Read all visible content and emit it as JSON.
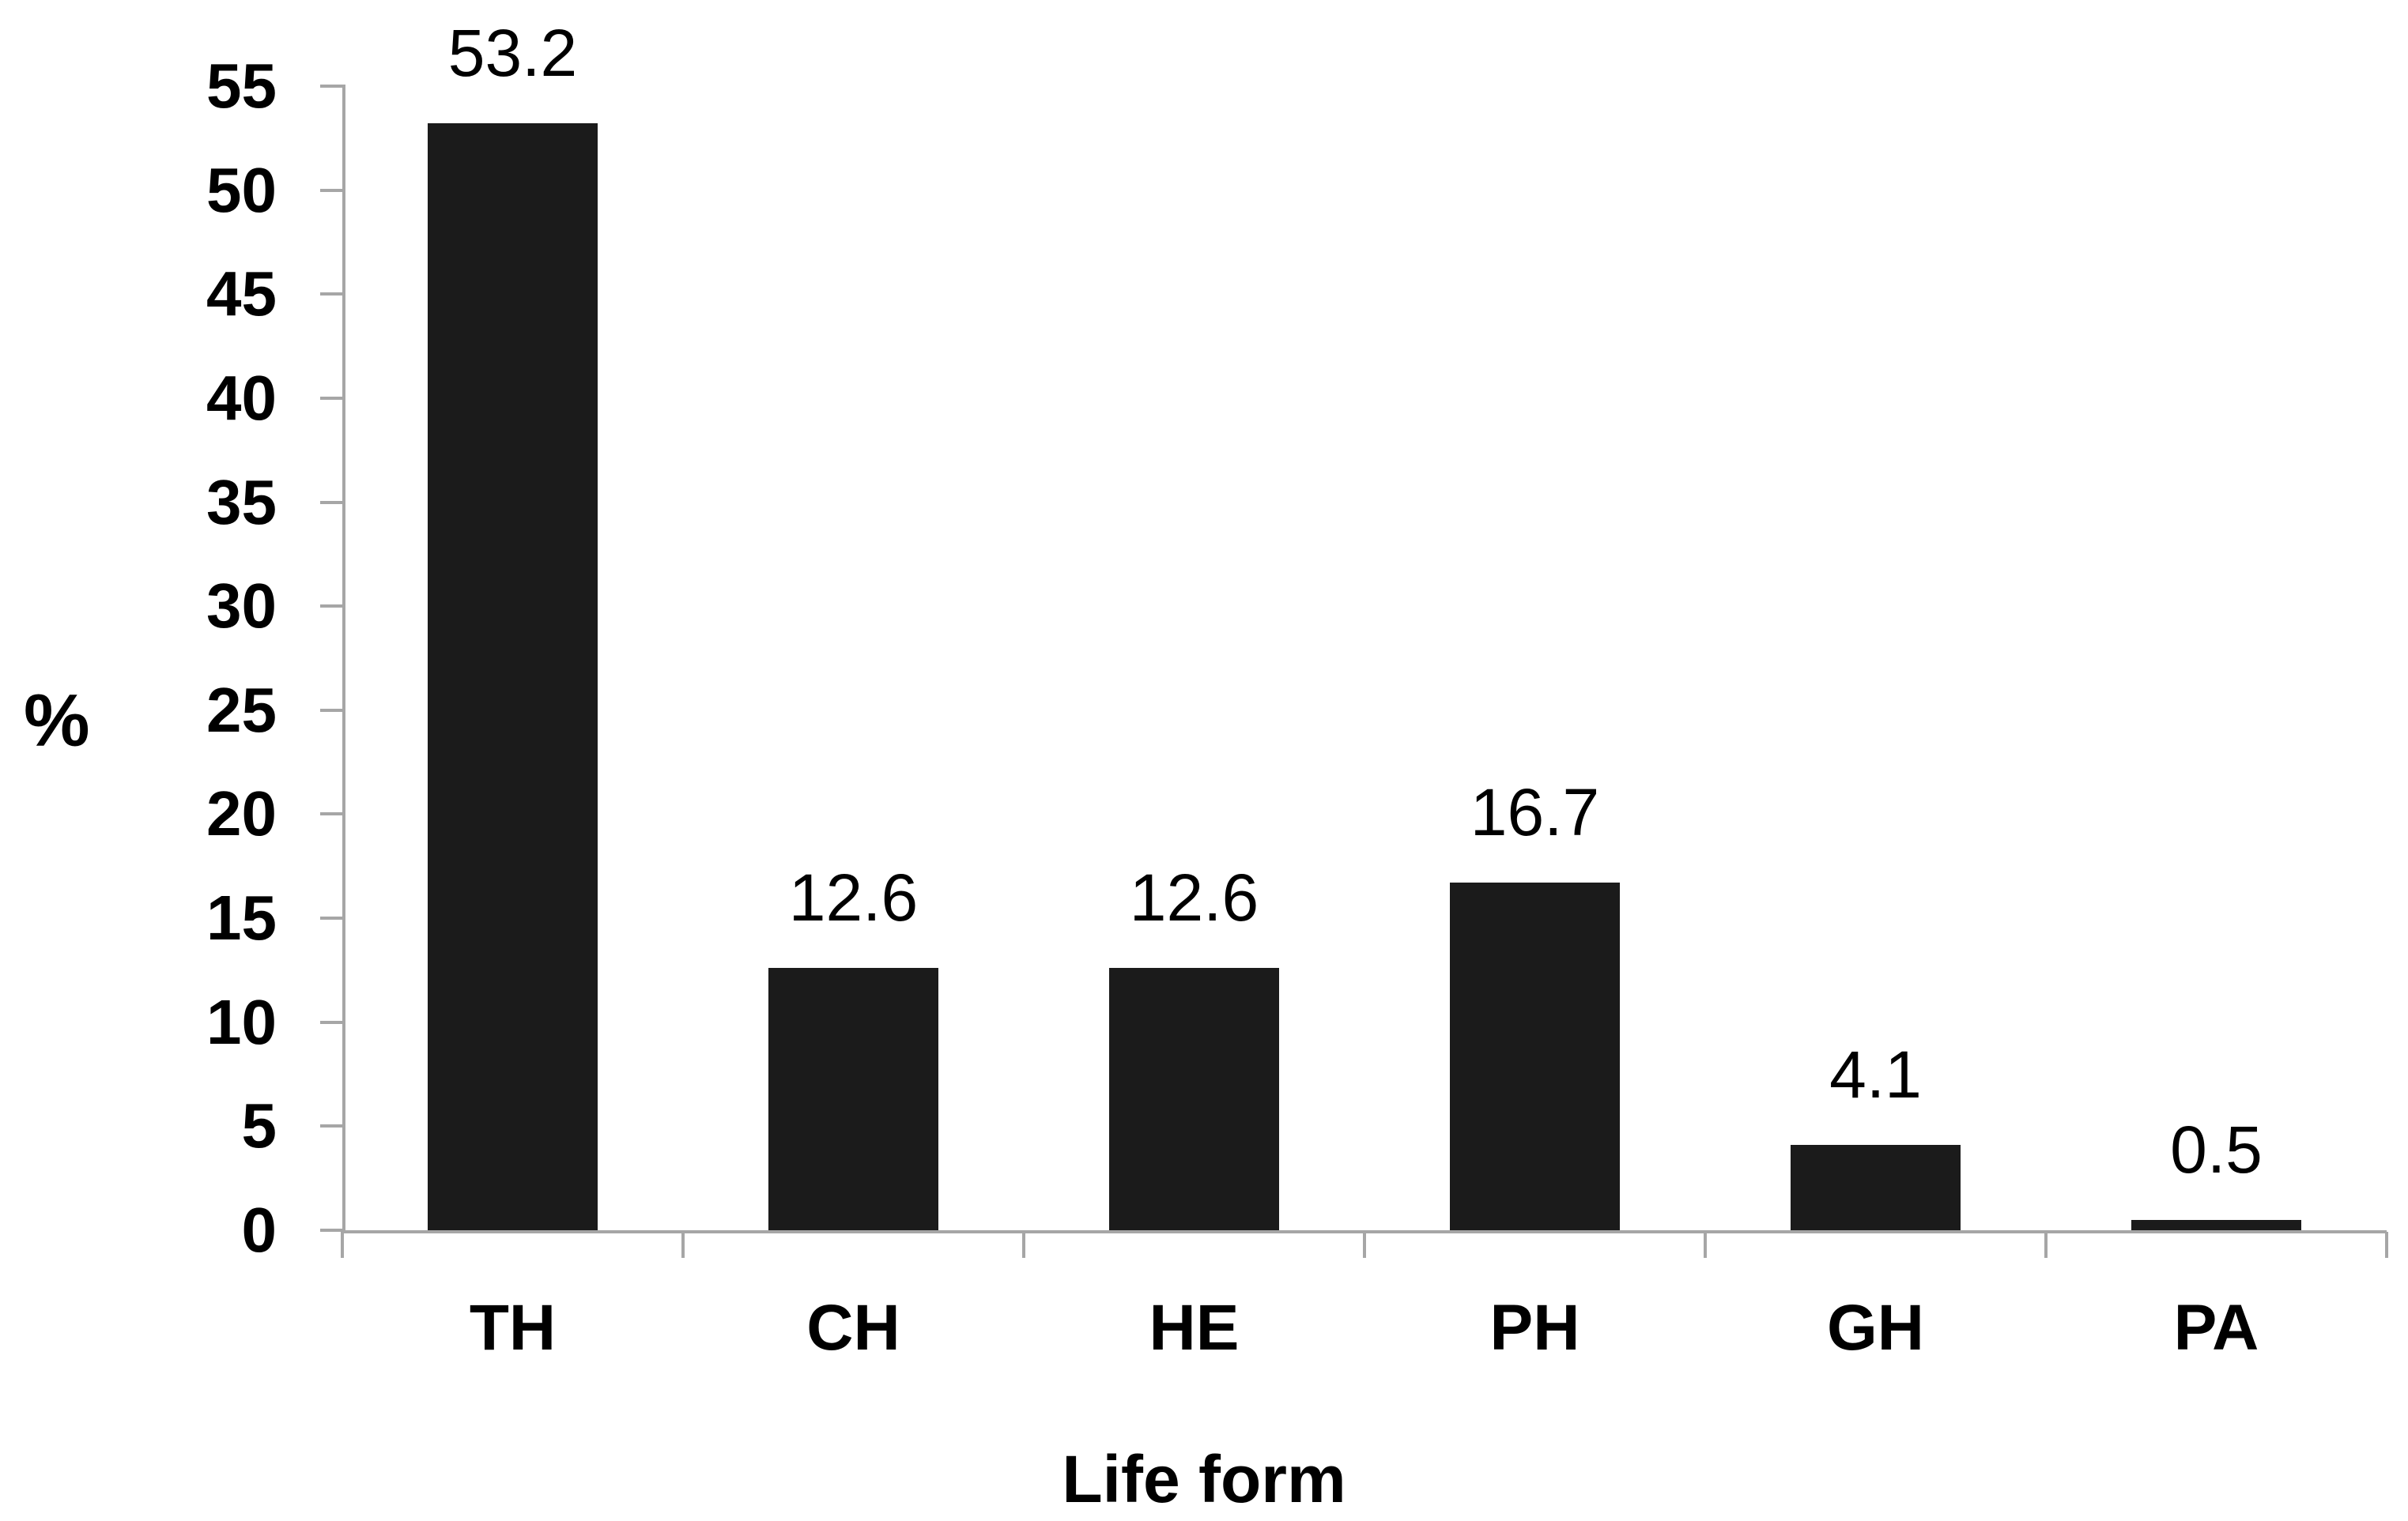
{
  "chart_data": {
    "type": "bar",
    "title": "",
    "categories": [
      "TH",
      "CH",
      "HE",
      "PH",
      "GH",
      "PA"
    ],
    "values": [
      53.2,
      12.6,
      12.6,
      16.7,
      4.1,
      0.5
    ],
    "value_labels": [
      "53.2",
      "12.6",
      "12.6",
      "16.7",
      "4.1",
      "0.5"
    ],
    "xlabel": "Life form",
    "ylabel": "%",
    "ylim": [
      0,
      55
    ],
    "yticks": [
      0,
      5,
      10,
      15,
      20,
      25,
      30,
      35,
      40,
      45,
      50,
      55
    ],
    "grid": false,
    "legend_position": "none",
    "bar_color": "#1b1b1b",
    "axis_color": "#a6a6a6",
    "text_color": "#000000",
    "background_color": "#ffffff"
  }
}
